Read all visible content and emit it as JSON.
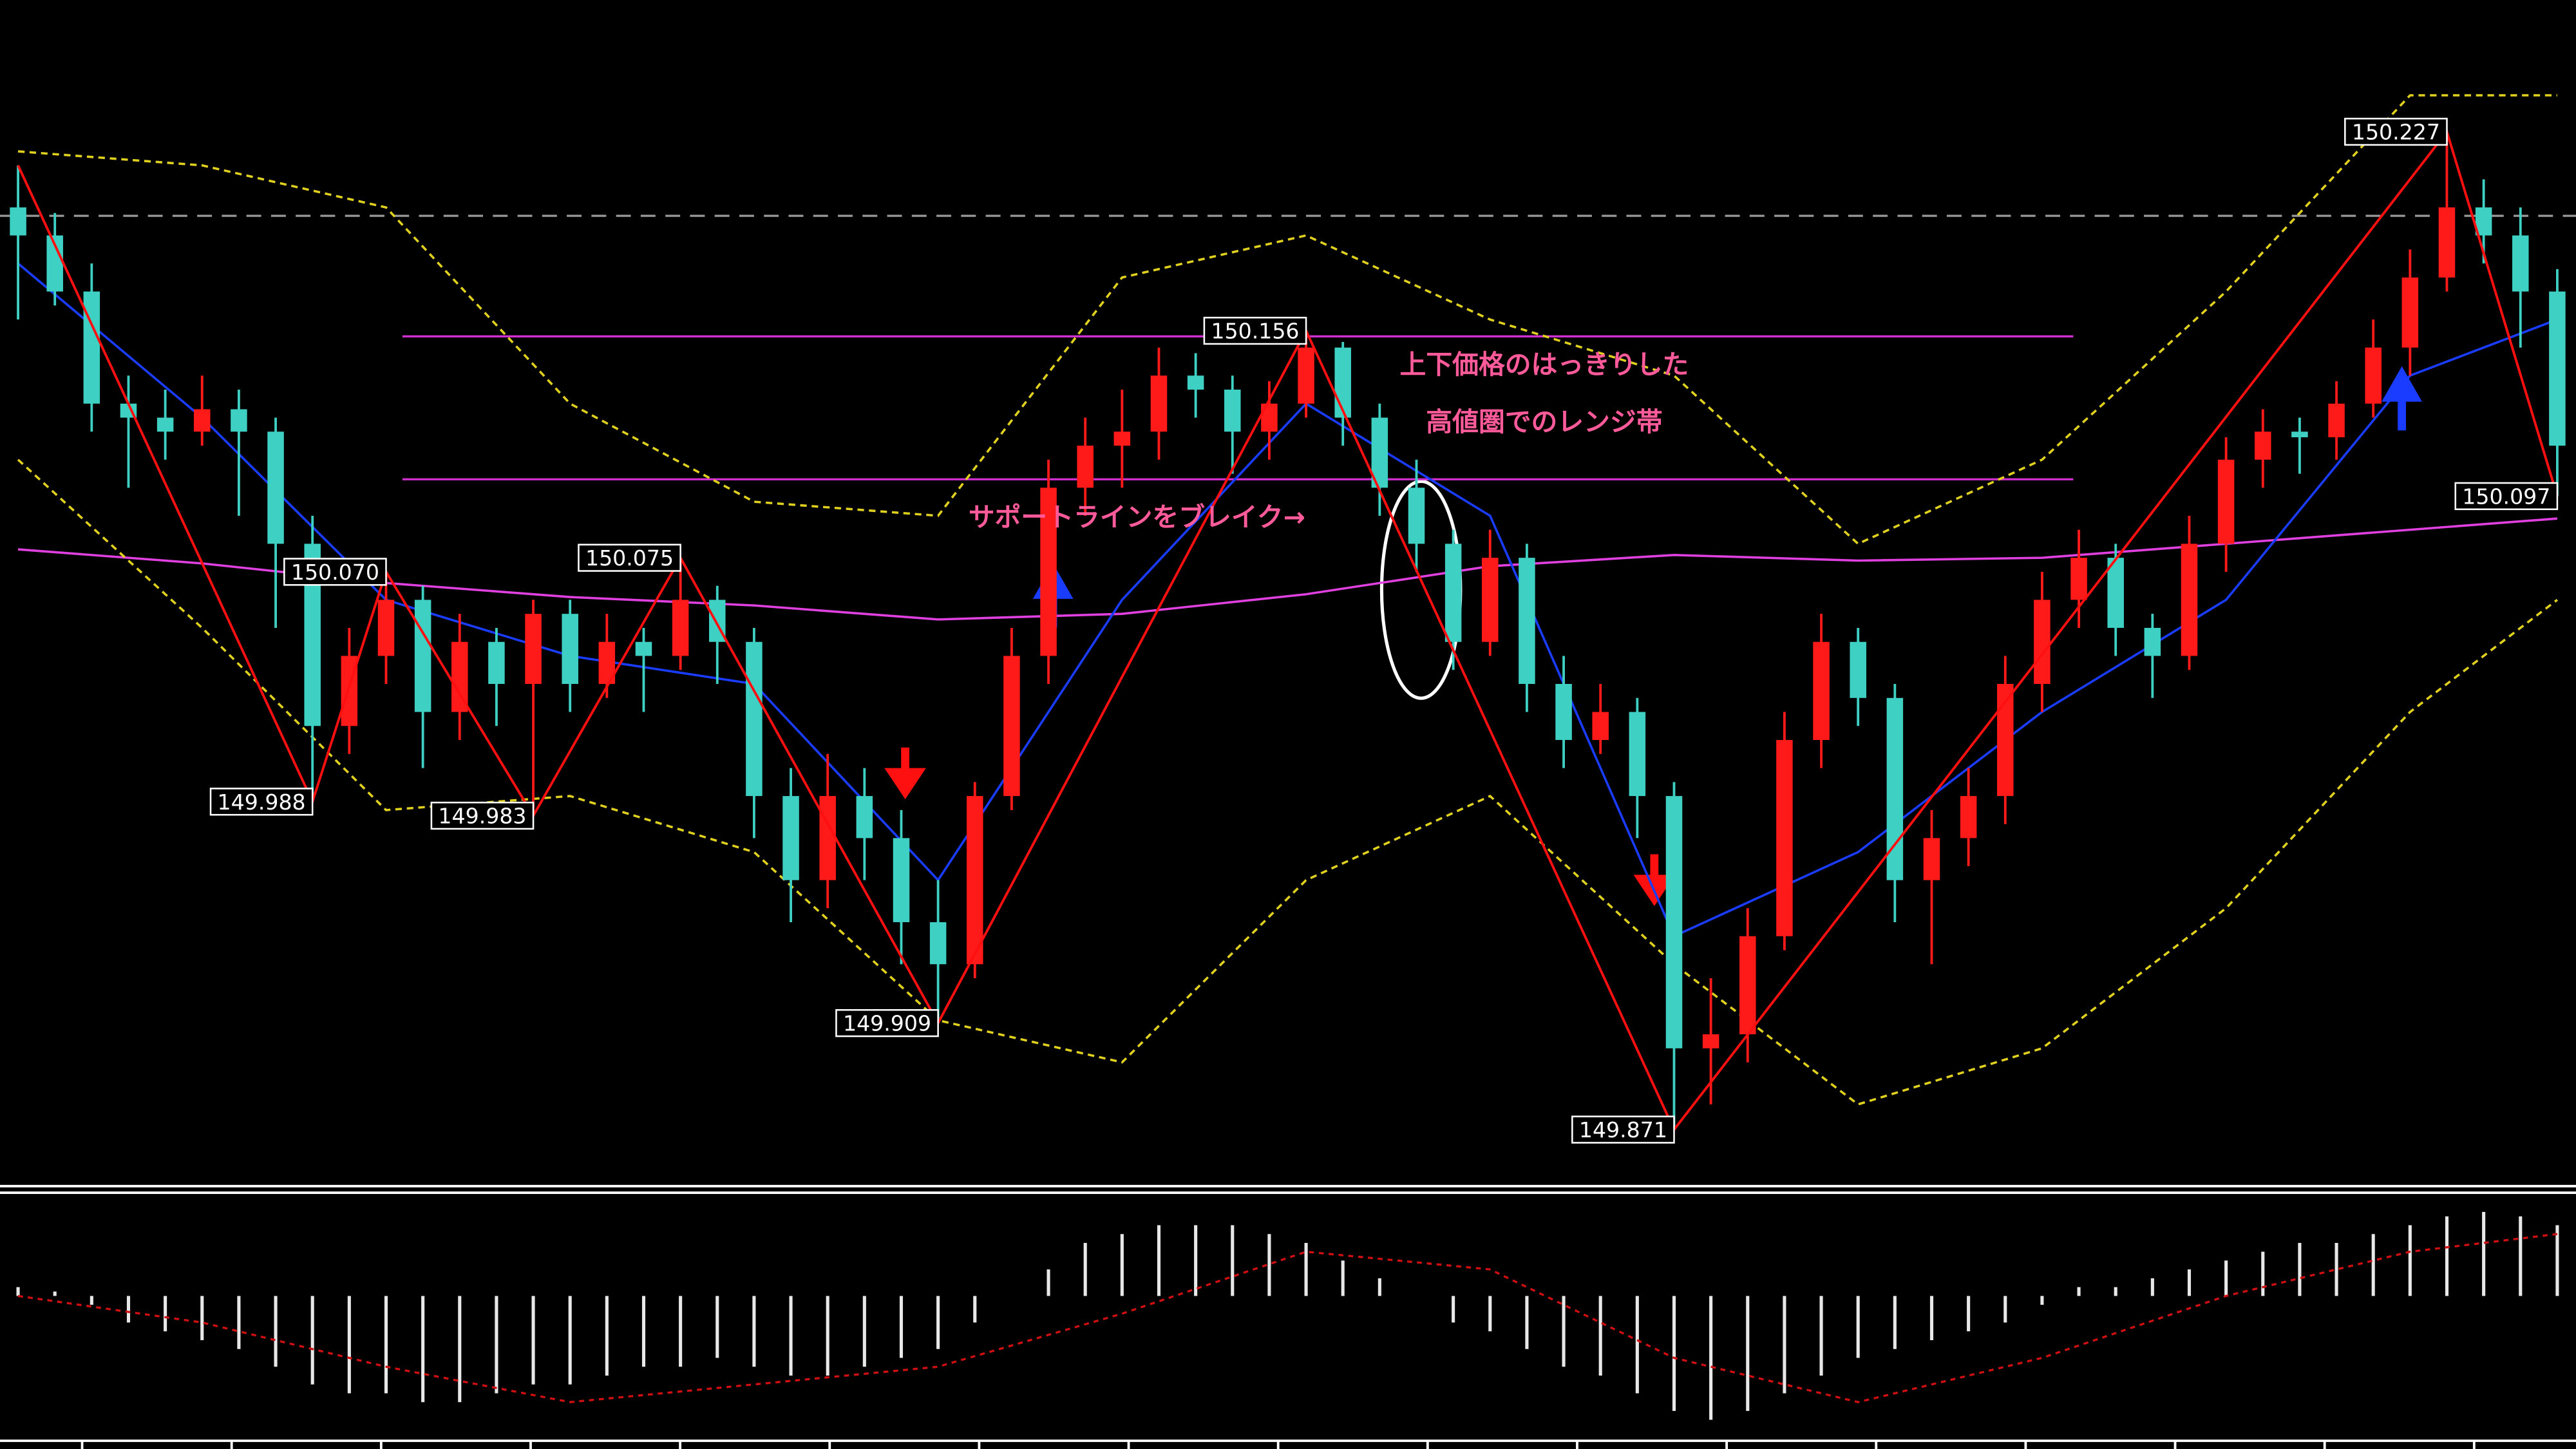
{
  "chart_data": {
    "type": "candlestick",
    "ylim": [
      149.852,
      150.274
    ],
    "up_color": "#ff1a1a",
    "down_color": "#3fd0c4",
    "candles": [
      [
        150.2,
        150.215,
        150.16,
        150.19
      ],
      [
        150.19,
        150.198,
        150.165,
        150.17
      ],
      [
        150.17,
        150.18,
        150.12,
        150.13
      ],
      [
        150.13,
        150.14,
        150.1,
        150.125
      ],
      [
        150.125,
        150.135,
        150.11,
        150.12
      ],
      [
        150.12,
        150.14,
        150.115,
        150.128
      ],
      [
        150.128,
        150.135,
        150.09,
        150.12
      ],
      [
        150.12,
        150.125,
        150.05,
        150.08
      ],
      [
        150.08,
        150.09,
        149.988,
        150.015
      ],
      [
        150.015,
        150.05,
        150.005,
        150.04
      ],
      [
        150.04,
        150.07,
        150.03,
        150.06
      ],
      [
        150.06,
        150.065,
        150.0,
        150.02
      ],
      [
        150.02,
        150.055,
        150.01,
        150.045
      ],
      [
        150.045,
        150.05,
        150.015,
        150.03
      ],
      [
        150.03,
        150.06,
        149.983,
        150.055
      ],
      [
        150.055,
        150.06,
        150.02,
        150.03
      ],
      [
        150.03,
        150.055,
        150.025,
        150.045
      ],
      [
        150.045,
        150.05,
        150.02,
        150.04
      ],
      [
        150.04,
        150.075,
        150.035,
        150.06
      ],
      [
        150.06,
        150.065,
        150.03,
        150.045
      ],
      [
        150.045,
        150.05,
        149.975,
        149.99
      ],
      [
        149.99,
        150.0,
        149.945,
        149.96
      ],
      [
        149.96,
        150.005,
        149.95,
        149.99
      ],
      [
        149.99,
        150.0,
        149.96,
        149.975
      ],
      [
        149.975,
        149.985,
        149.93,
        149.945
      ],
      [
        149.945,
        149.96,
        149.909,
        149.93
      ],
      [
        149.93,
        149.995,
        149.925,
        149.99
      ],
      [
        149.99,
        150.05,
        149.985,
        150.04
      ],
      [
        150.04,
        150.11,
        150.03,
        150.1
      ],
      [
        150.1,
        150.125,
        150.09,
        150.115
      ],
      [
        150.115,
        150.135,
        150.1,
        150.12
      ],
      [
        150.12,
        150.15,
        150.11,
        150.14
      ],
      [
        150.14,
        150.148,
        150.125,
        150.135
      ],
      [
        150.135,
        150.14,
        150.105,
        150.12
      ],
      [
        150.12,
        150.138,
        150.11,
        150.13
      ],
      [
        150.13,
        150.156,
        150.125,
        150.15
      ],
      [
        150.15,
        150.152,
        150.115,
        150.125
      ],
      [
        150.125,
        150.13,
        150.09,
        150.1
      ],
      [
        150.1,
        150.11,
        150.07,
        150.08
      ],
      [
        150.08,
        150.085,
        150.035,
        150.045
      ],
      [
        150.045,
        150.085,
        150.04,
        150.075
      ],
      [
        150.075,
        150.08,
        150.02,
        150.03
      ],
      [
        150.03,
        150.04,
        150.0,
        150.01
      ],
      [
        150.01,
        150.03,
        150.005,
        150.02
      ],
      [
        150.02,
        150.025,
        149.975,
        149.99
      ],
      [
        149.99,
        149.995,
        149.871,
        149.9
      ],
      [
        149.9,
        149.925,
        149.88,
        149.905
      ],
      [
        149.905,
        149.95,
        149.895,
        149.94
      ],
      [
        149.94,
        150.02,
        149.935,
        150.01
      ],
      [
        150.01,
        150.055,
        150.0,
        150.045
      ],
      [
        150.045,
        150.05,
        150.015,
        150.025
      ],
      [
        150.025,
        150.03,
        149.945,
        149.96
      ],
      [
        149.96,
        149.985,
        149.93,
        149.975
      ],
      [
        149.975,
        150.0,
        149.965,
        149.99
      ],
      [
        149.99,
        150.04,
        149.98,
        150.03
      ],
      [
        150.03,
        150.07,
        150.02,
        150.06
      ],
      [
        150.06,
        150.085,
        150.05,
        150.075
      ],
      [
        150.075,
        150.08,
        150.04,
        150.05
      ],
      [
        150.05,
        150.055,
        150.025,
        150.04
      ],
      [
        150.04,
        150.09,
        150.035,
        150.08
      ],
      [
        150.08,
        150.118,
        150.07,
        150.11
      ],
      [
        150.11,
        150.128,
        150.1,
        150.12
      ],
      [
        150.12,
        150.125,
        150.105,
        150.118
      ],
      [
        150.118,
        150.138,
        150.11,
        150.13
      ],
      [
        150.13,
        150.16,
        150.125,
        150.15
      ],
      [
        150.15,
        150.185,
        150.14,
        150.175
      ],
      [
        150.175,
        150.227,
        150.17,
        150.2
      ],
      [
        150.2,
        150.21,
        150.18,
        150.19
      ],
      [
        150.19,
        150.2,
        150.15,
        150.17
      ],
      [
        150.17,
        150.178,
        150.097,
        150.115
      ]
    ],
    "lines": [
      {
        "color": "#e040e0",
        "dash": false,
        "x": [
          0,
          5,
          10,
          15,
          20,
          25,
          30,
          35,
          40,
          45,
          50,
          55,
          60,
          65,
          69
        ],
        "values": [
          150.078,
          150.073,
          150.066,
          150.061,
          150.058,
          150.053,
          150.055,
          150.062,
          150.072,
          150.076,
          150.074,
          150.075,
          150.08,
          150.085,
          150.089
        ]
      },
      {
        "color": "#e0d020",
        "dash": true,
        "x": [
          0,
          5,
          10,
          15,
          20,
          25,
          30,
          35,
          40,
          45,
          50,
          55,
          60,
          65,
          69
        ],
        "values": [
          150.22,
          150.215,
          150.2,
          150.13,
          150.095,
          150.09,
          150.175,
          150.19,
          150.16,
          150.14,
          150.08,
          150.11,
          150.17,
          150.24,
          150.24
        ]
      },
      {
        "color": "#e0d020",
        "dash": true,
        "x": [
          0,
          5,
          10,
          15,
          20,
          25,
          30,
          35,
          40,
          45,
          50,
          55,
          60,
          65,
          69
        ],
        "values": [
          150.11,
          150.05,
          149.985,
          149.99,
          149.97,
          149.91,
          149.895,
          149.96,
          149.99,
          149.93,
          149.88,
          149.9,
          149.95,
          150.02,
          150.06
        ]
      },
      {
        "color": "#1a3cff",
        "dash": false,
        "x": [
          0,
          5,
          10,
          15,
          20,
          25,
          30,
          35,
          40,
          45,
          50,
          55,
          60,
          65,
          69
        ],
        "values": [
          150.18,
          150.125,
          150.06,
          150.04,
          150.03,
          149.96,
          150.06,
          150.13,
          150.09,
          149.94,
          149.97,
          150.02,
          150.06,
          150.14,
          150.16
        ]
      }
    ],
    "levels": [
      {
        "value": 150.197,
        "color": "#9a9a9a",
        "dash": true
      },
      {
        "value": 150.154,
        "color": "#d030d0",
        "dash": false
      },
      {
        "value": 150.103,
        "color": "#d030d0",
        "dash": false
      }
    ],
    "zigzag": {
      "color": "#ff1010",
      "x": [
        0,
        8,
        10,
        14,
        18,
        25,
        35,
        45,
        66,
        69
      ],
      "values": [
        150.215,
        149.988,
        150.07,
        149.983,
        150.075,
        149.909,
        150.156,
        149.871,
        150.227,
        150.097
      ],
      "value_labels": [
        null,
        "149.988",
        "150.070",
        "149.983",
        "150.075",
        "149.909",
        "150.156",
        "149.871",
        "150.227",
        "150.097"
      ]
    },
    "annotations": [
      "上下価格のはっきりした",
      "高値圏でのレンジ帯",
      "サポートラインをブレイク→"
    ],
    "oscillator": {
      "ylim": [
        -1.6,
        1.0
      ],
      "color": "#e8e8e8",
      "values": [
        0.1,
        0.05,
        -0.1,
        -0.3,
        -0.4,
        -0.5,
        -0.6,
        -0.8,
        -1.0,
        -1.1,
        -1.1,
        -1.2,
        -1.2,
        -1.1,
        -1.0,
        -1.0,
        -0.9,
        -0.8,
        -0.8,
        -0.7,
        -0.8,
        -0.9,
        -0.9,
        -0.8,
        -0.7,
        -0.6,
        -0.3,
        0.0,
        0.3,
        0.6,
        0.7,
        0.8,
        0.8,
        0.8,
        0.7,
        0.6,
        0.4,
        0.2,
        0.0,
        -0.3,
        -0.4,
        -0.6,
        -0.8,
        -0.9,
        -1.1,
        -1.3,
        -1.4,
        -1.3,
        -1.1,
        -0.9,
        -0.7,
        -0.6,
        -0.5,
        -0.4,
        -0.3,
        -0.1,
        0.1,
        0.1,
        0.2,
        0.3,
        0.4,
        0.5,
        0.6,
        0.6,
        0.7,
        0.8,
        0.9,
        0.95,
        0.9,
        0.8
      ],
      "signal": {
        "color": "#d01010",
        "x": [
          0,
          5,
          10,
          15,
          20,
          25,
          30,
          35,
          40,
          45,
          50,
          55,
          60,
          65,
          69
        ],
        "values": [
          0.0,
          -0.3,
          -0.8,
          -1.2,
          -1.0,
          -0.8,
          -0.2,
          0.5,
          0.3,
          -0.7,
          -1.2,
          -0.7,
          0.0,
          0.5,
          0.7
        ]
      }
    }
  }
}
